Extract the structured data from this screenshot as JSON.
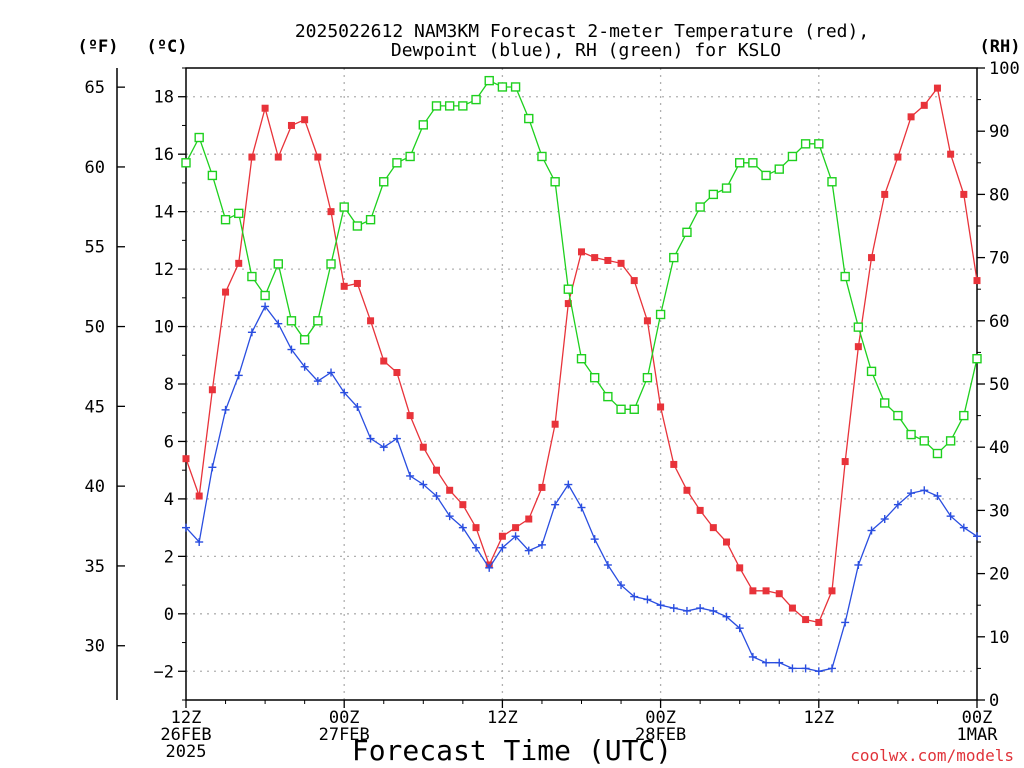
{
  "title_line1": "2025022612 NAM3KM Forecast 2-meter Temperature (red),",
  "title_line2": "Dewpoint (blue), RH (green) for KSLO",
  "unit_f": "(ºF)",
  "unit_c": "(ºC)",
  "unit_rh": "(RH)",
  "xlabel": "Forecast Time (UTC)",
  "credit": "coolwx.com/models",
  "colors": {
    "temperature": "#e8333a",
    "dewpoint": "#2a4ee0",
    "rh": "#1ed01e",
    "credit": "#e0333a",
    "grid": "#b0b0b0"
  },
  "chart_data": {
    "type": "line",
    "title": "2025022612 NAM3KM Forecast 2-meter Temperature (red), Dewpoint (blue), RH (green) for KSLO",
    "xlabel": "Forecast Time (UTC)",
    "x_unit": "forecast hour from 2025-02-26 12Z",
    "xlim": [
      0,
      60
    ],
    "ylim_c": [
      -3,
      19
    ],
    "ylim_f": [
      26.6,
      66.2
    ],
    "ylim_rh": [
      0,
      100
    ],
    "grid": true,
    "x_ticks": [
      {
        "hour": 0,
        "lines": [
          "12Z",
          "26FEB",
          "2025"
        ]
      },
      {
        "hour": 12,
        "lines": [
          "00Z",
          "27FEB"
        ]
      },
      {
        "hour": 24,
        "lines": [
          "12Z"
        ]
      },
      {
        "hour": 36,
        "lines": [
          "00Z",
          "28FEB"
        ]
      },
      {
        "hour": 48,
        "lines": [
          "12Z"
        ]
      },
      {
        "hour": 60,
        "lines": [
          "00Z",
          "1MAR"
        ]
      }
    ],
    "y_ticks_c": [
      "−2",
      "0",
      "2",
      "4",
      "6",
      "8",
      "10",
      "12",
      "14",
      "16",
      "18"
    ],
    "y_ticks_f": [
      "30",
      "35",
      "40",
      "45",
      "50",
      "55",
      "60",
      "65"
    ],
    "y_ticks_rh": [
      "0",
      "10",
      "20",
      "30",
      "40",
      "50",
      "60",
      "70",
      "80",
      "90",
      "100"
    ],
    "series": [
      {
        "name": "Temperature (red)",
        "axis": "C",
        "marker": "filled-square",
        "x": [
          0,
          1,
          2,
          3,
          4,
          5,
          6,
          7,
          8,
          9,
          10,
          11,
          12,
          13,
          14,
          15,
          16,
          17,
          18,
          19,
          20,
          21,
          22,
          23,
          24,
          25,
          26,
          27,
          28,
          29,
          30,
          31,
          32,
          33,
          34,
          35,
          36,
          37,
          38,
          39,
          40,
          41,
          42,
          43,
          44,
          45,
          46,
          47,
          48,
          49,
          50,
          51,
          52,
          53,
          54,
          55,
          56,
          57,
          58,
          59,
          60
        ],
        "values": [
          5.4,
          4.1,
          7.8,
          11.2,
          12.2,
          15.9,
          17.6,
          15.9,
          17.0,
          17.2,
          15.9,
          14.0,
          11.4,
          11.5,
          10.2,
          8.8,
          8.4,
          6.9,
          5.8,
          5.0,
          4.3,
          3.8,
          3.0,
          1.7,
          2.7,
          3.0,
          3.3,
          4.4,
          6.6,
          10.8,
          12.6,
          12.4,
          12.3,
          12.2,
          11.6,
          10.2,
          7.2,
          5.2,
          4.3,
          3.6,
          3.0,
          2.5,
          1.6,
          0.8,
          0.8,
          0.7,
          0.2,
          -0.2,
          -0.3,
          0.8,
          5.3,
          9.3,
          12.4,
          14.6,
          15.9,
          17.3,
          17.7,
          18.3,
          16.0,
          14.6,
          11.6
        ]
      },
      {
        "name": "Dewpoint (blue)",
        "axis": "C",
        "marker": "plus",
        "x": [
          0,
          1,
          2,
          3,
          4,
          5,
          6,
          7,
          8,
          9,
          10,
          11,
          12,
          13,
          14,
          15,
          16,
          17,
          18,
          19,
          20,
          21,
          22,
          23,
          24,
          25,
          26,
          27,
          28,
          29,
          30,
          31,
          32,
          33,
          34,
          35,
          36,
          37,
          38,
          39,
          40,
          41,
          42,
          43,
          44,
          45,
          46,
          47,
          48,
          49,
          50,
          51,
          52,
          53,
          54,
          55,
          56,
          57,
          58,
          59,
          60
        ],
        "values": [
          3.0,
          2.5,
          5.1,
          7.1,
          8.3,
          9.8,
          10.7,
          10.1,
          9.2,
          8.6,
          8.1,
          8.4,
          7.7,
          7.2,
          6.1,
          5.8,
          6.1,
          4.8,
          4.5,
          4.1,
          3.4,
          3.0,
          2.3,
          1.6,
          2.3,
          2.7,
          2.2,
          2.4,
          3.8,
          4.5,
          3.7,
          2.6,
          1.7,
          1.0,
          0.6,
          0.5,
          0.3,
          0.2,
          0.1,
          0.2,
          0.1,
          -0.1,
          -0.5,
          -1.5,
          -1.7,
          -1.7,
          -1.9,
          -1.9,
          -2.0,
          -1.9,
          -0.3,
          1.7,
          2.9,
          3.3,
          3.8,
          4.2,
          4.3,
          4.1,
          3.4,
          3.0,
          2.7
        ]
      },
      {
        "name": "RH (green)",
        "axis": "RH",
        "marker": "open-square",
        "x": [
          0,
          1,
          2,
          3,
          4,
          5,
          6,
          7,
          8,
          9,
          10,
          11,
          12,
          13,
          14,
          15,
          16,
          17,
          18,
          19,
          20,
          21,
          22,
          23,
          24,
          25,
          26,
          27,
          28,
          29,
          30,
          31,
          32,
          33,
          34,
          35,
          36,
          37,
          38,
          39,
          40,
          41,
          42,
          43,
          44,
          45,
          46,
          47,
          48,
          49,
          50,
          51,
          52,
          53,
          54,
          55,
          56,
          57,
          58,
          59,
          60
        ],
        "values": [
          85,
          89,
          83,
          76,
          77,
          67,
          64,
          69,
          60,
          57,
          60,
          69,
          78,
          75,
          76,
          82,
          85,
          86,
          91,
          94,
          94,
          94,
          95,
          98,
          97,
          97,
          92,
          86,
          82,
          65,
          54,
          51,
          48,
          46,
          46,
          51,
          61,
          70,
          74,
          78,
          80,
          81,
          85,
          85,
          83,
          84,
          86,
          88,
          88,
          82,
          67,
          59,
          52,
          47,
          45,
          42,
          41,
          39,
          41,
          45,
          54
        ]
      }
    ]
  }
}
